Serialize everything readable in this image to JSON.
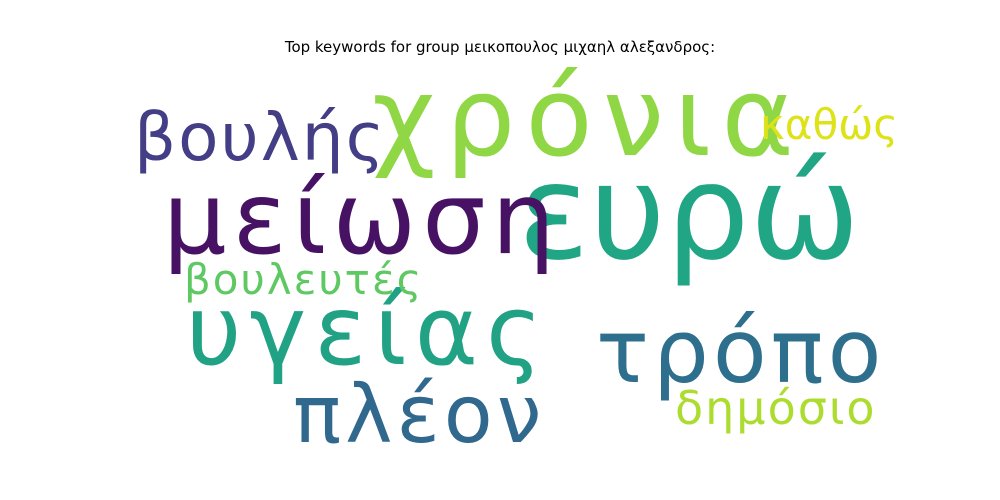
{
  "chart_data": {
    "type": "wordcloud",
    "title": "Top keywords for group μεικοπουλος μιχαηλ αλεξανδρος:",
    "words": [
      {
        "text": "ευρώ",
        "rank": 1,
        "color": "#21a685"
      },
      {
        "text": "χρόνια",
        "rank": 2,
        "color": "#8fd744"
      },
      {
        "text": "μείωση",
        "rank": 3,
        "color": "#471164"
      },
      {
        "text": "υγείας",
        "rank": 4,
        "color": "#22a284"
      },
      {
        "text": "τρόπο",
        "rank": 5,
        "color": "#2e6f8e"
      },
      {
        "text": "πλέον",
        "rank": 6,
        "color": "#31688e"
      },
      {
        "text": "βουλής",
        "rank": 7,
        "color": "#433e85"
      },
      {
        "text": "δημόσιο",
        "rank": 8,
        "color": "#addc30"
      },
      {
        "text": "βουλευτές",
        "rank": 9,
        "color": "#5ec962"
      },
      {
        "text": "καθώς",
        "rank": 10,
        "color": "#dde318"
      }
    ]
  }
}
